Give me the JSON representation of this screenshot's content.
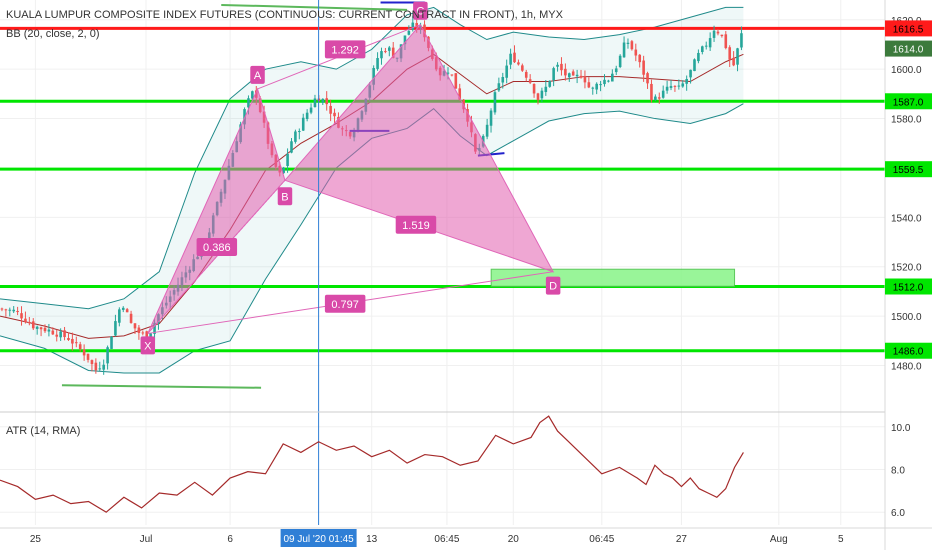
{
  "title": "KUALA LUMPUR COMPOSITE INDEX FUTURES (CONTINUOUS: CURRENT CONTRACT IN FRONT), 1h, MYX",
  "bb_label": "BB (20, close, 2, 0)",
  "atr_label": "ATR (14, RMA)",
  "colors": {
    "up": "#26a69a",
    "down": "#ef5350",
    "bb_mid": "#a52a2a",
    "bb_band": "#1f8a8a",
    "bb_fill": "rgba(120,200,200,0.12)",
    "harmonic": "#e066b8",
    "harmonic_fill": "rgba(225,95,175,0.55)",
    "level_green": "#00e600",
    "level_red": "#ff1a1a",
    "atr": "#a52a2a",
    "zone": "#8ef58e",
    "price_tag": "#3c7a3c",
    "axis_text": "#333333"
  },
  "chart_data": [
    {
      "type": "candlestick",
      "title": "KUALA LUMPUR COMPOSITE INDEX FUTURES (CONTINUOUS: CURRENT CONTRACT IN FRONT), 1h, MYX",
      "ylim": [
        1462,
        1628
      ],
      "yticks": [
        1480,
        1500,
        1520,
        1540,
        1560,
        1580,
        1600,
        1620
      ],
      "xlim": [
        0,
        100
      ],
      "xticks": [
        {
          "x": 4,
          "label": "25"
        },
        {
          "x": 16.5,
          "label": "Jul"
        },
        {
          "x": 26,
          "label": "6"
        },
        {
          "x": 42,
          "label": "13"
        },
        {
          "x": 50.5,
          "label": "06:45"
        },
        {
          "x": 58,
          "label": "20"
        },
        {
          "x": 68,
          "label": "06:45"
        },
        {
          "x": 77,
          "label": "27"
        },
        {
          "x": 88,
          "label": "Aug"
        },
        {
          "x": 95,
          "label": "5"
        }
      ],
      "crosshair_label": "09 Jul '20  01:45",
      "crosshair_x": 36,
      "price_anchors": [
        [
          0,
          1503
        ],
        [
          2,
          1502
        ],
        [
          4,
          1496
        ],
        [
          6,
          1494
        ],
        [
          8,
          1491
        ],
        [
          10,
          1484
        ],
        [
          11,
          1478
        ],
        [
          12,
          1482
        ],
        [
          13,
          1495
        ],
        [
          14,
          1506
        ],
        [
          15,
          1497
        ],
        [
          16,
          1493
        ],
        [
          17,
          1492
        ],
        [
          18,
          1500
        ],
        [
          20,
          1511
        ],
        [
          22,
          1522
        ],
        [
          23.5,
          1530
        ],
        [
          25,
          1548
        ],
        [
          26.5,
          1566
        ],
        [
          28,
          1585
        ],
        [
          29,
          1592
        ],
        [
          30,
          1578
        ],
        [
          31,
          1563
        ],
        [
          32,
          1556
        ],
        [
          33,
          1570
        ],
        [
          34,
          1576
        ],
        [
          35,
          1583
        ],
        [
          36,
          1589
        ],
        [
          37,
          1587
        ],
        [
          38,
          1580
        ],
        [
          39,
          1575
        ],
        [
          40,
          1574
        ],
        [
          41,
          1583
        ],
        [
          42,
          1594
        ],
        [
          43,
          1606
        ],
        [
          44,
          1609
        ],
        [
          45,
          1604
        ],
        [
          46,
          1614
        ],
        [
          47,
          1618
        ],
        [
          48,
          1616
        ],
        [
          49,
          1605
        ],
        [
          50,
          1598
        ],
        [
          51,
          1600
        ],
        [
          52,
          1590
        ],
        [
          53,
          1581
        ],
        [
          54,
          1565
        ],
        [
          55,
          1573
        ],
        [
          56,
          1588
        ],
        [
          57,
          1597
        ],
        [
          58,
          1606
        ],
        [
          59,
          1601
        ],
        [
          60,
          1596
        ],
        [
          61,
          1588
        ],
        [
          62,
          1593
        ],
        [
          63,
          1602
        ],
        [
          64,
          1598
        ],
        [
          65,
          1596
        ],
        [
          66,
          1598
        ],
        [
          67,
          1591
        ],
        [
          68,
          1595
        ],
        [
          69,
          1596
        ],
        [
          70,
          1602
        ],
        [
          71,
          1612
        ],
        [
          72,
          1606
        ],
        [
          73,
          1598
        ],
        [
          74,
          1587
        ],
        [
          75,
          1590
        ],
        [
          76,
          1593
        ],
        [
          77,
          1592
        ],
        [
          78,
          1597
        ],
        [
          79,
          1605
        ],
        [
          80,
          1610
        ],
        [
          81,
          1617
        ],
        [
          82,
          1612
        ],
        [
          83,
          1600
        ],
        [
          84,
          1614
        ]
      ],
      "bollinger": {
        "upper": [
          [
            0,
            1507
          ],
          [
            5,
            1505
          ],
          [
            10,
            1503
          ],
          [
            14,
            1507
          ],
          [
            18,
            1518
          ],
          [
            22,
            1558
          ],
          [
            26,
            1588
          ],
          [
            30,
            1600
          ],
          [
            34,
            1603
          ],
          [
            38,
            1600
          ],
          [
            42,
            1608
          ],
          [
            46,
            1622
          ],
          [
            49,
            1625
          ],
          [
            52,
            1618
          ],
          [
            55,
            1612
          ],
          [
            58,
            1615
          ],
          [
            62,
            1613
          ],
          [
            66,
            1612
          ],
          [
            70,
            1614
          ],
          [
            74,
            1617
          ],
          [
            78,
            1621
          ],
          [
            82,
            1625
          ],
          [
            84,
            1625
          ]
        ],
        "middle": [
          [
            0,
            1500
          ],
          [
            5,
            1496
          ],
          [
            10,
            1491
          ],
          [
            14,
            1492
          ],
          [
            18,
            1497
          ],
          [
            22,
            1514
          ],
          [
            26,
            1535
          ],
          [
            30,
            1559
          ],
          [
            34,
            1570
          ],
          [
            38,
            1578
          ],
          [
            42,
            1587
          ],
          [
            46,
            1600
          ],
          [
            49,
            1606
          ],
          [
            52,
            1598
          ],
          [
            55,
            1590
          ],
          [
            58,
            1595
          ],
          [
            62,
            1595
          ],
          [
            66,
            1597
          ],
          [
            70,
            1597
          ],
          [
            74,
            1596
          ],
          [
            78,
            1595
          ],
          [
            82,
            1603
          ],
          [
            84,
            1606
          ]
        ],
        "lower": [
          [
            0,
            1492
          ],
          [
            5,
            1487
          ],
          [
            10,
            1478
          ],
          [
            14,
            1477
          ],
          [
            18,
            1477
          ],
          [
            22,
            1486
          ],
          [
            26,
            1490
          ],
          [
            30,
            1515
          ],
          [
            34,
            1537
          ],
          [
            38,
            1560
          ],
          [
            42,
            1572
          ],
          [
            46,
            1576
          ],
          [
            49,
            1584
          ],
          [
            52,
            1573
          ],
          [
            55,
            1565
          ],
          [
            58,
            1571
          ],
          [
            62,
            1579
          ],
          [
            66,
            1582
          ],
          [
            70,
            1583
          ],
          [
            74,
            1580
          ],
          [
            78,
            1578
          ],
          [
            82,
            1582
          ],
          [
            84,
            1586
          ]
        ]
      },
      "levels": [
        {
          "value": 1616.5,
          "label": "1616.5",
          "color": "red"
        },
        {
          "value": 1587.0,
          "label": "1587.0",
          "color": "green"
        },
        {
          "value": 1559.5,
          "label": "1559.5",
          "color": "green"
        },
        {
          "value": 1512.0,
          "label": "1512.0",
          "color": "green"
        },
        {
          "value": 1486.0,
          "label": "1486.0",
          "color": "green"
        }
      ],
      "last_price": {
        "value": 1614.0,
        "label": "1614.0"
      },
      "harmonic": {
        "points": [
          {
            "name": "X",
            "x": 16.7,
            "y": 1493
          },
          {
            "name": "A",
            "x": 29.1,
            "y": 1592
          },
          {
            "name": "B",
            "x": 32.2,
            "y": 1555
          },
          {
            "name": "C",
            "x": 47.5,
            "y": 1618
          },
          {
            "name": "D",
            "x": 62.5,
            "y": 1518
          }
        ],
        "ratios": [
          {
            "label": "0.386",
            "x": 24.5,
            "y": 1528
          },
          {
            "label": "1.292",
            "x": 39,
            "y": 1608
          },
          {
            "label": "1.519",
            "x": 47,
            "y": 1537
          },
          {
            "label": "0.797",
            "x": 39,
            "y": 1505
          }
        ]
      },
      "prz_zone": {
        "x_from": 55.5,
        "x_to": 83,
        "y_from": 1512,
        "y_to": 1519
      },
      "marker_lines": [
        {
          "x1": 7,
          "x2": 29.5,
          "y1": 1472,
          "y2": 1471,
          "color": "#5cb85c"
        },
        {
          "x1": 25,
          "x2": 46,
          "y1": 1626,
          "y2": 1624,
          "color": "#5cb85c"
        },
        {
          "x1": 43,
          "x2": 48,
          "y1": 1627,
          "y2": 1627,
          "color": "#2222cc"
        },
        {
          "x1": 39.5,
          "x2": 44,
          "y1": 1575,
          "y2": 1575,
          "color": "#2222cc"
        },
        {
          "x1": 54,
          "x2": 57,
          "y1": 1565,
          "y2": 1566,
          "color": "#2222cc"
        }
      ]
    },
    {
      "type": "line",
      "title": "ATR (14, RMA)",
      "ylim": [
        5.4,
        10.6
      ],
      "yticks": [
        6.0,
        8.0,
        10.0
      ],
      "series": [
        {
          "values": [
            [
              0,
              7.5
            ],
            [
              2,
              7.2
            ],
            [
              4,
              6.6
            ],
            [
              6,
              6.8
            ],
            [
              8,
              6.4
            ],
            [
              10,
              6.5
            ],
            [
              12,
              6.0
            ],
            [
              14,
              6.7
            ],
            [
              16,
              6.2
            ],
            [
              18,
              6.9
            ],
            [
              20,
              6.8
            ],
            [
              22,
              7.4
            ],
            [
              24,
              6.8
            ],
            [
              26,
              7.6
            ],
            [
              28,
              7.9
            ],
            [
              30,
              7.8
            ],
            [
              32,
              9.2
            ],
            [
              34,
              8.8
            ],
            [
              36,
              9.3
            ],
            [
              38,
              8.9
            ],
            [
              40,
              9.1
            ],
            [
              42,
              8.6
            ],
            [
              44,
              8.9
            ],
            [
              46,
              8.3
            ],
            [
              48,
              8.7
            ],
            [
              50,
              8.6
            ],
            [
              52,
              8.2
            ],
            [
              54,
              8.4
            ],
            [
              56,
              9.6
            ],
            [
              58,
              9.2
            ],
            [
              60,
              9.5
            ],
            [
              61,
              10.2
            ],
            [
              62,
              10.5
            ],
            [
              63,
              9.8
            ],
            [
              64,
              9.4
            ],
            [
              66,
              8.6
            ],
            [
              68,
              7.8
            ],
            [
              70,
              8.1
            ],
            [
              72,
              7.6
            ],
            [
              73,
              7.3
            ],
            [
              74,
              8.2
            ],
            [
              75,
              7.8
            ],
            [
              76,
              7.6
            ],
            [
              77,
              7.2
            ],
            [
              78,
              7.6
            ],
            [
              79,
              7.1
            ],
            [
              80,
              6.9
            ],
            [
              81,
              6.7
            ],
            [
              82,
              7.1
            ],
            [
              83,
              8.1
            ],
            [
              84,
              8.8
            ]
          ]
        }
      ]
    }
  ]
}
